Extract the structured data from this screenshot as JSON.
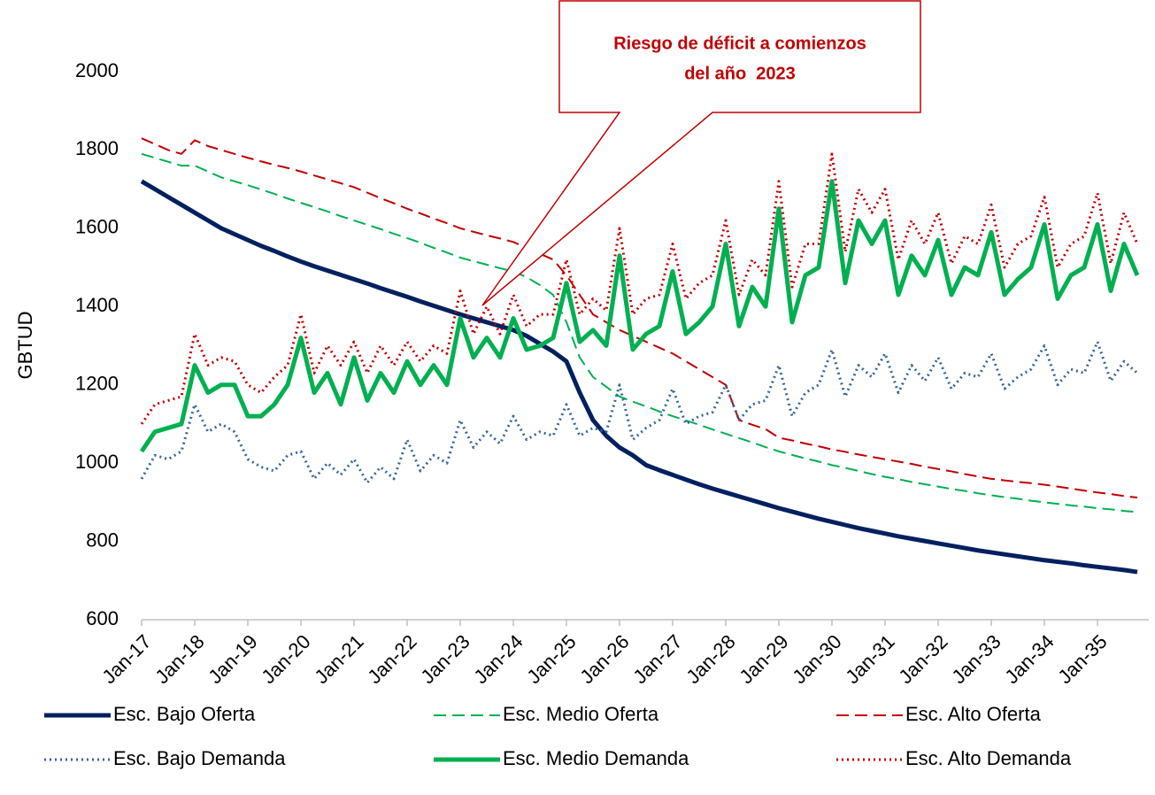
{
  "chart_data": {
    "type": "line",
    "annotation": [
      "Riesgo de déficit a comienzos",
      "del año  2023"
    ],
    "ylabel": "GBTUD",
    "ylim": [
      600,
      2000
    ],
    "yticks": [
      600,
      800,
      1000,
      1200,
      1400,
      1600,
      1800,
      2000
    ],
    "grid": false,
    "categories": [
      "Jan-17",
      null,
      null,
      null,
      "Jan-18",
      null,
      null,
      null,
      "Jan-19",
      null,
      null,
      null,
      "Jan-20",
      null,
      null,
      null,
      "Jan-21",
      null,
      null,
      null,
      "Jan-22",
      null,
      null,
      null,
      "Jan-23",
      null,
      null,
      null,
      "Jan-24",
      null,
      null,
      null,
      "Jan-25",
      null,
      null,
      null,
      "Jan-26",
      null,
      null,
      null,
      "Jan-27",
      null,
      null,
      null,
      "Jan-28",
      null,
      null,
      null,
      "Jan-29",
      null,
      null,
      null,
      "Jan-30",
      null,
      null,
      null,
      "Jan-31",
      null,
      null,
      null,
      "Jan-32",
      null,
      null,
      null,
      "Jan-33",
      null,
      null,
      null,
      "Jan-34",
      null,
      null,
      null,
      "Jan-35",
      null,
      null,
      null
    ],
    "series": [
      {
        "name": "Esc. Bajo Oferta",
        "color": "#002060",
        "style": "solid",
        "width": 5,
        "values": [
          1720,
          1700,
          1680,
          1660,
          1640,
          1620,
          1600,
          1585,
          1570,
          1555,
          1542,
          1528,
          1515,
          1503,
          1492,
          1481,
          1470,
          1459,
          1447,
          1436,
          1425,
          1413,
          1402,
          1391,
          1380,
          1370,
          1360,
          1350,
          1340,
          1325,
          1305,
          1285,
          1260,
          1180,
          1110,
          1070,
          1040,
          1020,
          995,
          982,
          970,
          958,
          946,
          935,
          925,
          915,
          905,
          895,
          885,
          876,
          867,
          858,
          850,
          842,
          834,
          827,
          820,
          813,
          807,
          801,
          795,
          789,
          783,
          777,
          772,
          767,
          762,
          757,
          752,
          748,
          744,
          739,
          735,
          731,
          727,
          722
        ]
      },
      {
        "name": "Esc. Medio Oferta",
        "color": "#00b050",
        "style": "dashed",
        "width": 2,
        "values": [
          1790,
          1780,
          1770,
          1760,
          1760,
          1745,
          1730,
          1720,
          1710,
          1699,
          1688,
          1676,
          1665,
          1654,
          1643,
          1631,
          1620,
          1609,
          1598,
          1586,
          1575,
          1563,
          1550,
          1538,
          1525,
          1516,
          1507,
          1498,
          1490,
          1475,
          1455,
          1430,
          1360,
          1270,
          1220,
          1195,
          1170,
          1157,
          1145,
          1132,
          1120,
          1109,
          1098,
          1086,
          1075,
          1064,
          1053,
          1041,
          1030,
          1021,
          1012,
          1004,
          995,
          988,
          980,
          972,
          965,
          959,
          952,
          946,
          940,
          934,
          929,
          923,
          918,
          913,
          909,
          904,
          900,
          896,
          892,
          889,
          885,
          882,
          878,
          875
        ]
      },
      {
        "name": "Esc. Alto Oferta",
        "color": "#c00000",
        "style": "dashed",
        "width": 2,
        "values": [
          1830,
          1815,
          1800,
          1790,
          1825,
          1810,
          1800,
          1790,
          1780,
          1771,
          1762,
          1754,
          1745,
          1735,
          1725,
          1715,
          1705,
          1691,
          1677,
          1664,
          1650,
          1638,
          1625,
          1613,
          1600,
          1591,
          1582,
          1574,
          1565,
          1550,
          1535,
          1520,
          1480,
          1430,
          1380,
          1360,
          1340,
          1325,
          1310,
          1295,
          1280,
          1260,
          1240,
          1220,
          1200,
          1110,
          1098,
          1087,
          1065,
          1058,
          1050,
          1043,
          1035,
          1029,
          1022,
          1016,
          1010,
          1004,
          998,
          991,
          985,
          979,
          972,
          966,
          960,
          956,
          952,
          949,
          945,
          940,
          935,
          930,
          925,
          921,
          916,
          912
        ]
      },
      {
        "name": "Esc. Bajo Demanda",
        "color": "#336699",
        "style": "dotted",
        "width": 3,
        "values": [
          960,
          1020,
          1010,
          1030,
          1150,
          1080,
          1100,
          1080,
          1010,
          990,
          980,
          1020,
          1030,
          960,
          1000,
          970,
          1010,
          950,
          990,
          960,
          1060,
          980,
          1020,
          1000,
          1110,
          1040,
          1080,
          1050,
          1120,
          1060,
          1080,
          1070,
          1150,
          1070,
          1090,
          1080,
          1200,
          1060,
          1090,
          1110,
          1190,
          1100,
          1120,
          1130,
          1200,
          1110,
          1150,
          1160,
          1250,
          1120,
          1180,
          1200,
          1290,
          1170,
          1250,
          1220,
          1280,
          1180,
          1250,
          1210,
          1270,
          1190,
          1230,
          1220,
          1280,
          1190,
          1220,
          1240,
          1300,
          1200,
          1240,
          1230,
          1310,
          1210,
          1260,
          1230
        ]
      },
      {
        "name": "Esc. Medio Demanda",
        "color": "#00b050",
        "style": "solid",
        "width": 5,
        "values": [
          1030,
          1080,
          1090,
          1100,
          1250,
          1180,
          1200,
          1200,
          1120,
          1120,
          1150,
          1200,
          1320,
          1180,
          1230,
          1150,
          1270,
          1160,
          1230,
          1180,
          1260,
          1200,
          1250,
          1200,
          1370,
          1270,
          1320,
          1270,
          1370,
          1290,
          1300,
          1320,
          1460,
          1310,
          1340,
          1300,
          1530,
          1290,
          1330,
          1350,
          1490,
          1330,
          1360,
          1400,
          1560,
          1350,
          1450,
          1400,
          1650,
          1360,
          1480,
          1500,
          1720,
          1460,
          1620,
          1560,
          1620,
          1430,
          1530,
          1480,
          1570,
          1430,
          1500,
          1480,
          1590,
          1430,
          1470,
          1500,
          1610,
          1420,
          1480,
          1500,
          1610,
          1440,
          1560,
          1480
        ]
      },
      {
        "name": "Esc. Alto Demanda",
        "color": "#c00000",
        "style": "dotted",
        "width": 3,
        "values": [
          1100,
          1150,
          1160,
          1170,
          1330,
          1250,
          1270,
          1260,
          1200,
          1180,
          1220,
          1250,
          1380,
          1230,
          1300,
          1250,
          1310,
          1230,
          1300,
          1250,
          1310,
          1260,
          1300,
          1280,
          1440,
          1330,
          1400,
          1330,
          1430,
          1350,
          1380,
          1380,
          1520,
          1380,
          1420,
          1390,
          1600,
          1380,
          1420,
          1430,
          1560,
          1420,
          1460,
          1480,
          1620,
          1430,
          1520,
          1480,
          1720,
          1450,
          1560,
          1560,
          1790,
          1540,
          1700,
          1640,
          1700,
          1520,
          1620,
          1560,
          1640,
          1510,
          1580,
          1560,
          1660,
          1500,
          1560,
          1580,
          1680,
          1500,
          1560,
          1580,
          1690,
          1510,
          1640,
          1560
        ]
      }
    ]
  }
}
